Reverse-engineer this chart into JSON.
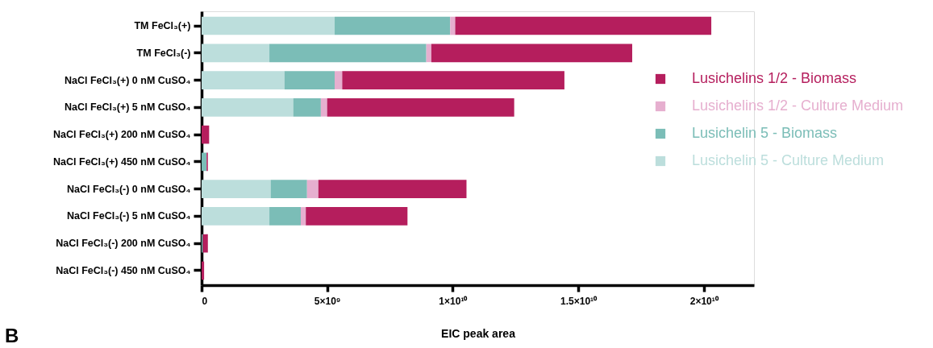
{
  "chart_data": {
    "type": "bar",
    "orientation": "horizontal",
    "stacked": true,
    "categories": [
      "TM FeCl₃(+)",
      "TM FeCl₃(-)",
      "NaCl FeCl₃(+) 0 nM CuSO₄",
      "NaCl FeCl₃(+) 5 nM CuSO₄",
      "NaCl FeCl₃(+) 200 nM CuSO₄",
      "NaCl FeCl₃(+) 450 nM CuSO₄",
      "NaCl FeCl₃(-) 0 nM CuSO₄",
      "NaCl FeCl₃(-) 5 nM CuSO₄",
      "NaCl FeCl₃(-) 200 nM CuSO₄",
      "NaCl FeCl₃(-) 450 nM CuSO₄"
    ],
    "series": [
      {
        "name": "Lusichelin 5 - Culture Medium",
        "color": "#bcdedc",
        "values": [
          5300000000.0,
          2700000000.0,
          3300000000.0,
          3650000000.0,
          0,
          0,
          2750000000.0,
          2700000000.0,
          0,
          0
        ]
      },
      {
        "name": "Lusichelin 5 - Biomass",
        "color": "#7bbdb7",
        "values": [
          4600000000.0,
          6250000000.0,
          2000000000.0,
          1100000000.0,
          0,
          200000000.0,
          1450000000.0,
          1250000000.0,
          50000000.0,
          0
        ]
      },
      {
        "name": "Lusichelins 1/2 - Culture Medium",
        "color": "#e6afcf",
        "values": [
          200000000.0,
          200000000.0,
          300000000.0,
          250000000.0,
          0,
          0,
          450000000.0,
          200000000.0,
          0,
          0
        ]
      },
      {
        "name": "Lusichelins 1/2 - Biomass",
        "color": "#b51e5d",
        "values": [
          10200000000.0,
          8000000000.0,
          8850000000.0,
          7450000000.0,
          300000000.0,
          50000000.0,
          5900000000.0,
          4050000000.0,
          200000000.0,
          100000000.0
        ]
      }
    ],
    "xlim": [
      0,
      22000000000.0
    ],
    "xticks": [
      0,
      {
        "value": 5000000000.0,
        "label": "5×10⁹"
      },
      {
        "value": 10000000000.0,
        "label": "1×10¹⁰"
      },
      {
        "value": 15000000000.0,
        "label": "1.5×10¹⁰"
      },
      {
        "value": 20000000000.0,
        "label": "2×10¹⁰"
      }
    ],
    "xlabel": "EIC peak area",
    "annotations": [
      "B"
    ],
    "legend": "right",
    "grid": false
  }
}
